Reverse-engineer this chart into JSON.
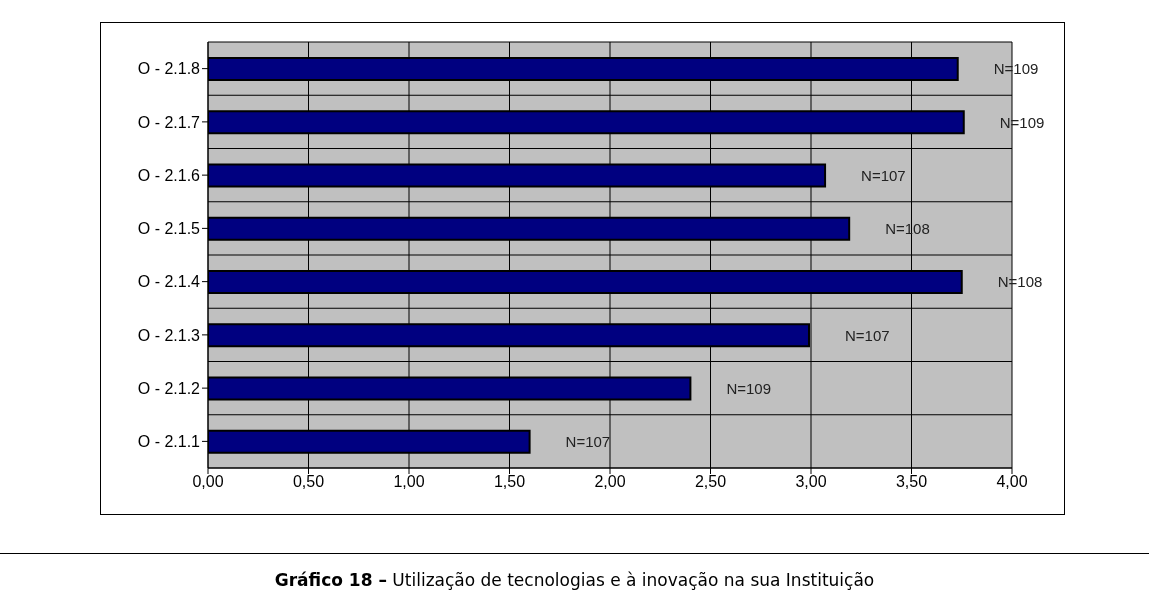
{
  "chart_data": {
    "type": "bar",
    "orientation": "horizontal",
    "title": "Gráfico 18 –",
    "subtitle": "Utilização de tecnologias e à inovação na sua Instituição",
    "categories": [
      "O - 2.1.8",
      "O - 2.1.7",
      "O - 2.1.6",
      "O - 2.1.5",
      "O - 2.1.4",
      "O - 2.1.3",
      "O - 2.1.2",
      "O - 2.1.1"
    ],
    "values": [
      3.73,
      3.76,
      3.07,
      3.19,
      3.75,
      2.99,
      2.4,
      1.6
    ],
    "color": "#000080",
    "xlim": [
      0,
      4
    ],
    "xticks": [
      {
        "value": 0,
        "label": "0,00"
      },
      {
        "value": 0.5,
        "label": "0,50"
      },
      {
        "value": 1,
        "label": "1,00"
      },
      {
        "value": 1.5,
        "label": "1,50"
      },
      {
        "value": 2,
        "label": "2,00"
      },
      {
        "value": 2.5,
        "label": "2,50"
      },
      {
        "value": 3,
        "label": "3,00"
      },
      {
        "value": 3.5,
        "label": "3,50"
      },
      {
        "value": 4,
        "label": "4,00"
      }
    ],
    "grid": true,
    "annotations": [
      "N=109",
      "N=109",
      "N=107",
      "N=108",
      "N=108",
      "N=107",
      "N=109",
      "N=107"
    ]
  }
}
